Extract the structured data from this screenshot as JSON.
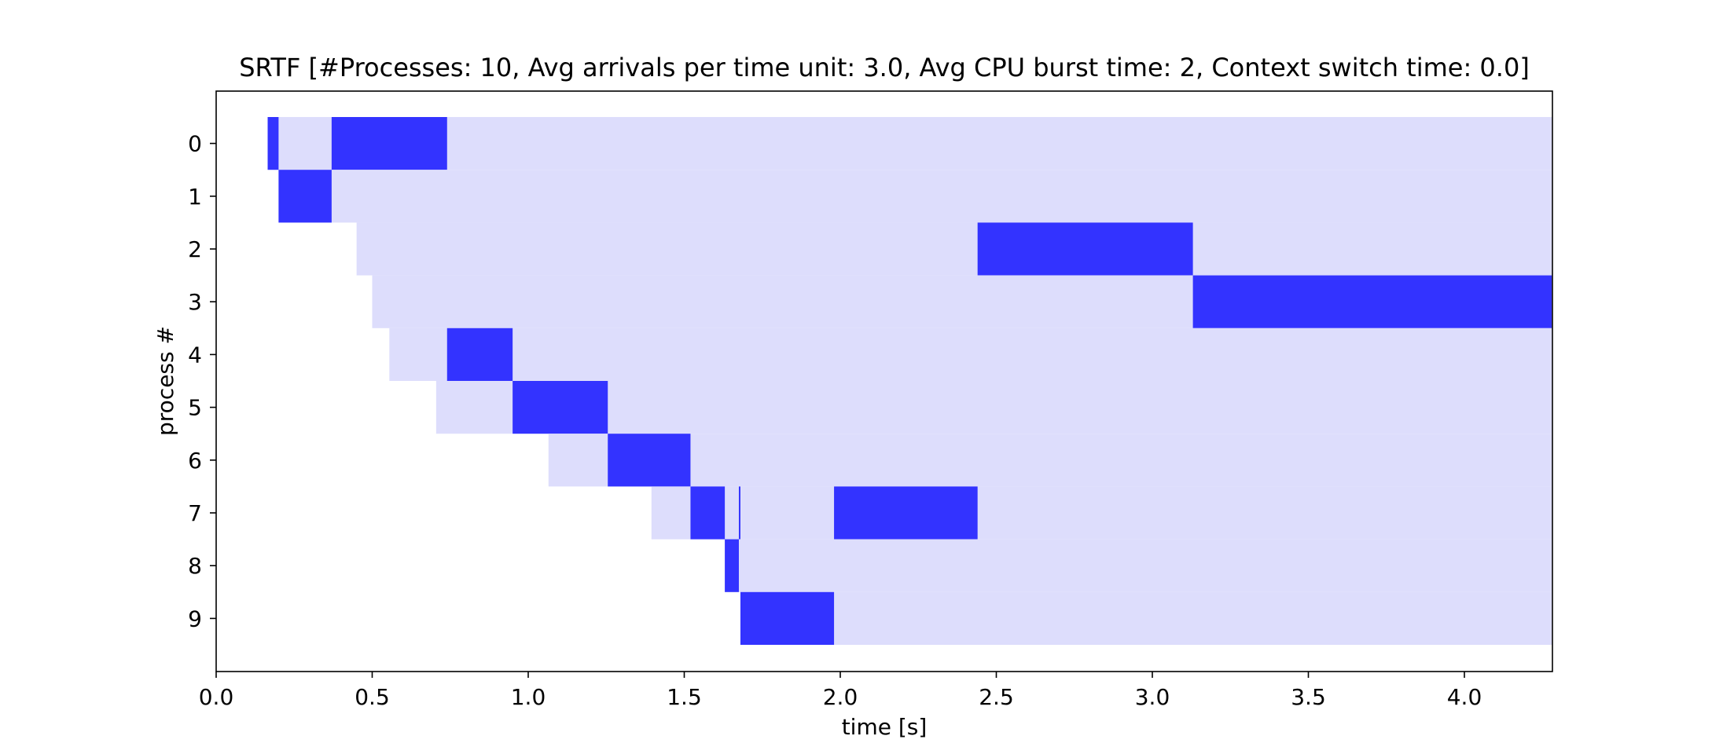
{
  "chart_data": {
    "type": "gantt",
    "title": "SRTF [#Processes: 10, Avg arrivals per time unit: 3.0, Avg CPU burst time: 2, Context switch time: 0.0]",
    "xlabel": "time [s]",
    "ylabel": "process #",
    "xlim": [
      0.0,
      4.28
    ],
    "x_ticks": [
      "0.0",
      "0.5",
      "1.0",
      "1.5",
      "2.0",
      "2.5",
      "3.0",
      "3.5",
      "4.0"
    ],
    "y_ticks": [
      "0",
      "1",
      "2",
      "3",
      "4",
      "5",
      "6",
      "7",
      "8",
      "9"
    ],
    "grid": false,
    "colors": {
      "running": "#3333ff",
      "waiting": "#ddddfc"
    },
    "processes": [
      {
        "id": "0",
        "arrival": 0.165,
        "running": [
          [
            0.165,
            0.2
          ],
          [
            0.37,
            0.74
          ]
        ]
      },
      {
        "id": "1",
        "arrival": 0.2,
        "running": [
          [
            0.2,
            0.37
          ]
        ]
      },
      {
        "id": "2",
        "arrival": 0.45,
        "running": [
          [
            2.44,
            3.13
          ]
        ]
      },
      {
        "id": "3",
        "arrival": 0.5,
        "running": [
          [
            3.13,
            4.28
          ]
        ]
      },
      {
        "id": "4",
        "arrival": 0.555,
        "running": [
          [
            0.74,
            0.95
          ]
        ]
      },
      {
        "id": "5",
        "arrival": 0.705,
        "running": [
          [
            0.95,
            1.255
          ]
        ]
      },
      {
        "id": "6",
        "arrival": 1.065,
        "running": [
          [
            1.255,
            1.52
          ]
        ]
      },
      {
        "id": "7",
        "arrival": 1.395,
        "running": [
          [
            1.52,
            1.63
          ],
          [
            1.675,
            1.68
          ],
          [
            1.98,
            2.44
          ]
        ]
      },
      {
        "id": "8",
        "arrival": 1.63,
        "running": [
          [
            1.63,
            1.675
          ]
        ]
      },
      {
        "id": "9",
        "arrival": 1.68,
        "running": [
          [
            1.68,
            1.98
          ]
        ]
      }
    ]
  }
}
